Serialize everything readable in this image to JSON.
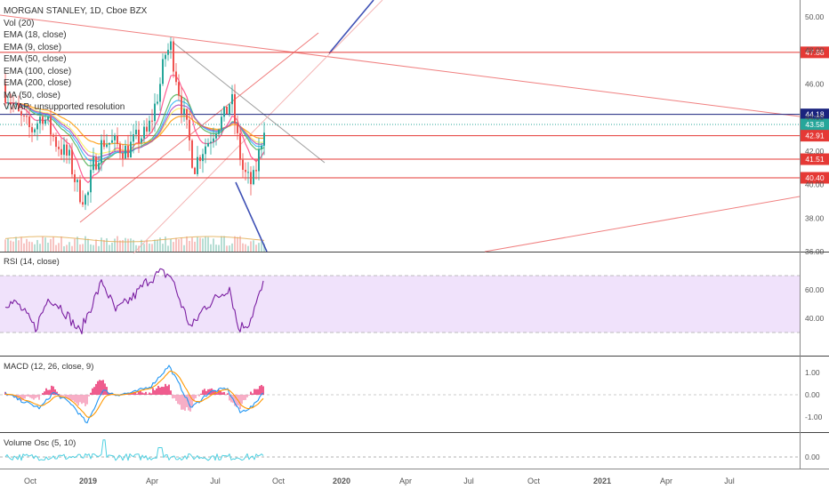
{
  "header": {
    "symbol_line": "MORGAN STANLEY, 1D, Cboe BZX",
    "indicators": [
      "Vol (20)",
      "EMA (18, close)",
      "EMA (9, close)",
      "EMA (50, close)",
      "EMA (100, close)",
      "EMA (200, close)",
      "MA (50, close)",
      "VWAP: unsupported resolution"
    ]
  },
  "panes": {
    "rsi_label": "RSI (14, close)",
    "macd_label": "MACD (12, 26, close, 9)",
    "vosc_label": "Volume Osc (5, 10)"
  },
  "chart_data": [
    {
      "type": "line",
      "pane": "price",
      "y_axis_ticks": [
        "50.00",
        "48.00",
        "46.00",
        "44.00",
        "42.00",
        "40.00",
        "38.00",
        "36.00"
      ],
      "ylim": [
        36,
        51
      ],
      "horizontal_levels": [
        {
          "label": "47.88",
          "value": 47.88,
          "color": "#e53935"
        },
        {
          "label": "44.18",
          "value": 44.18,
          "color": "#1a237e"
        },
        {
          "label": "43.58",
          "value": 43.58,
          "color": "#26a69a"
        },
        {
          "label": "42.91",
          "value": 42.91,
          "color": "#e53935"
        },
        {
          "label": "41.51",
          "value": 41.51,
          "color": "#e53935"
        },
        {
          "label": "40.40",
          "value": 40.4,
          "color": "#e53935"
        }
      ]
    },
    {
      "type": "line",
      "pane": "rsi",
      "y_axis_ticks": [
        "60.00",
        "40.00"
      ],
      "band": [
        30,
        70
      ]
    },
    {
      "type": "line",
      "pane": "macd",
      "y_axis_ticks": [
        "1.00",
        "0.00",
        "-1.00"
      ]
    },
    {
      "type": "line",
      "pane": "volume_osc",
      "y_axis_ticks": [
        "0.00"
      ]
    }
  ],
  "x_axis": {
    "labels": [
      {
        "text": "Oct",
        "bold": false
      },
      {
        "text": "2019",
        "bold": true
      },
      {
        "text": "Apr",
        "bold": false
      },
      {
        "text": "Jul",
        "bold": false
      },
      {
        "text": "Oct",
        "bold": false
      },
      {
        "text": "2020",
        "bold": true
      },
      {
        "text": "Apr",
        "bold": false
      },
      {
        "text": "Jul",
        "bold": false
      },
      {
        "text": "Oct",
        "bold": false
      },
      {
        "text": "2021",
        "bold": true
      },
      {
        "text": "Apr",
        "bold": false
      },
      {
        "text": "Jul",
        "bold": false
      }
    ]
  },
  "colors": {
    "up": "#26a69a",
    "down": "#ef5350",
    "rsi": "#7b1fa2",
    "rsi_band": "#f0e2fb",
    "macd": "#2196f3",
    "signal": "#ff9800",
    "vosc": "#4dd0e1"
  }
}
